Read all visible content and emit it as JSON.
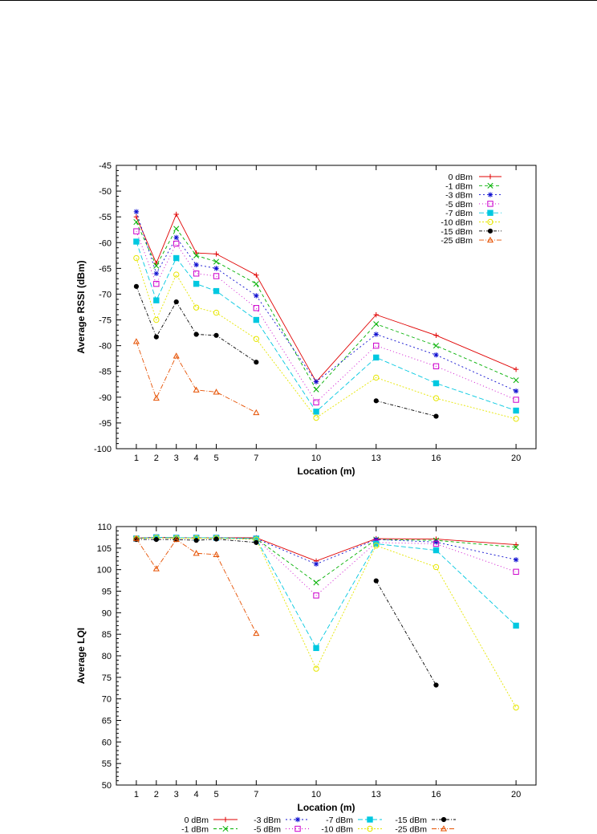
{
  "chart_data": [
    {
      "type": "line",
      "xlabel": "Location (m)",
      "ylabel": "Average RSSI (dBm)",
      "ylim": [
        -100,
        -45
      ],
      "yticks": [
        -45,
        -50,
        -55,
        -60,
        -65,
        -70,
        -75,
        -80,
        -85,
        -90,
        -95,
        -100
      ],
      "xticks": [
        1,
        2,
        3,
        4,
        5,
        7,
        10,
        13,
        16,
        20
      ],
      "legend_position": "top-right",
      "series": [
        {
          "name": "0 dBm",
          "color": "#e00000",
          "marker": "plus",
          "dash": "",
          "x": [
            1,
            2,
            3,
            4,
            5,
            7,
            10,
            13,
            16,
            20
          ],
          "y": [
            -55,
            -64,
            -54.5,
            -62,
            -62.2,
            -66.3,
            -87,
            -74,
            -78,
            -84.6
          ]
        },
        {
          "name": "-1 dBm",
          "color": "#00b000",
          "marker": "cross",
          "dash": "4,3",
          "x": [
            1,
            2,
            3,
            4,
            5,
            7,
            10,
            13,
            16,
            20
          ],
          "y": [
            -56,
            -64.5,
            -57.3,
            -62.5,
            -63.7,
            -68,
            -88.5,
            -75.8,
            -80,
            -86.7
          ]
        },
        {
          "name": "-3 dBm",
          "color": "#1010d0",
          "marker": "star",
          "dash": "2,3",
          "x": [
            1,
            2,
            3,
            4,
            5,
            7,
            10,
            13,
            16,
            20
          ],
          "y": [
            -54,
            -66,
            -59,
            -64.3,
            -65,
            -70.3,
            -87,
            -77.8,
            -81.8,
            -88.8
          ]
        },
        {
          "name": "-5 dBm",
          "color": "#cc00cc",
          "marker": "square",
          "dash": "1,3",
          "x": [
            1,
            2,
            3,
            4,
            5,
            7,
            10,
            13,
            16,
            20
          ],
          "y": [
            -57.8,
            -68,
            -60.2,
            -66,
            -66.5,
            -72.7,
            -91,
            -80,
            -84,
            -90.5
          ]
        },
        {
          "name": "-7 dBm",
          "color": "#00c8e0",
          "marker": "fsquare",
          "dash": "6,3",
          "x": [
            1,
            2,
            3,
            4,
            5,
            7,
            10,
            13,
            16,
            20
          ],
          "y": [
            -59.8,
            -71.2,
            -63,
            -68,
            -69.4,
            -75,
            -92.8,
            -82.3,
            -87.3,
            -92.6
          ]
        },
        {
          "name": "-10 dBm",
          "color": "#e6e600",
          "marker": "circle",
          "dash": "2,2",
          "x": [
            1,
            2,
            3,
            4,
            5,
            7,
            10,
            13,
            16,
            20
          ],
          "y": [
            -63,
            -75,
            -66.2,
            -72.6,
            -73.6,
            -78.7,
            -94,
            -86.2,
            -90.2,
            -94.2
          ]
        },
        {
          "name": "-15 dBm",
          "color": "#000000",
          "marker": "fcircle",
          "dash": "4,2,1,2",
          "x": [
            1,
            2,
            3,
            4,
            5,
            7,
            13,
            16
          ],
          "y": [
            -68.5,
            -78.3,
            -71.5,
            -77.8,
            -78,
            -83.2,
            -90.7,
            -93.7
          ],
          "breaks": [
            6
          ]
        },
        {
          "name": "-25 dBm",
          "color": "#e65000",
          "marker": "triangle",
          "dash": "6,2,1,2",
          "x": [
            1,
            2,
            3,
            4,
            5,
            7
          ],
          "y": [
            -79.2,
            -90.2,
            -82,
            -88.6,
            -89,
            -93
          ]
        }
      ]
    },
    {
      "type": "line",
      "xlabel": "Location (m)",
      "ylabel": "Average LQI",
      "ylim": [
        50,
        110
      ],
      "yticks": [
        110,
        105,
        100,
        95,
        90,
        85,
        80,
        75,
        70,
        65,
        60,
        55,
        50
      ],
      "xticks": [
        1,
        2,
        3,
        4,
        5,
        7,
        10,
        13,
        16,
        20
      ],
      "legend_position": "bottom",
      "series": [
        {
          "name": "0 dBm",
          "color": "#e00000",
          "marker": "plus",
          "dash": "",
          "x": [
            1,
            2,
            3,
            4,
            5,
            7,
            10,
            13,
            16,
            20
          ],
          "y": [
            107.3,
            107.5,
            107.4,
            107.4,
            107.4,
            107.4,
            102,
            107.2,
            107.1,
            105.8
          ]
        },
        {
          "name": "-1 dBm",
          "color": "#00b000",
          "marker": "cross",
          "dash": "4,3",
          "x": [
            1,
            2,
            3,
            4,
            5,
            7,
            10,
            13,
            16,
            20
          ],
          "y": [
            107.3,
            107.5,
            107.4,
            107.4,
            107.4,
            107.2,
            97,
            107,
            106.8,
            105.2
          ]
        },
        {
          "name": "-3 dBm",
          "color": "#1010d0",
          "marker": "star",
          "dash": "2,3",
          "x": [
            1,
            2,
            3,
            4,
            5,
            7,
            10,
            13,
            16,
            20
          ],
          "y": [
            107.3,
            107.5,
            107.4,
            107.4,
            107.4,
            107.2,
            101.3,
            107,
            106.4,
            102.3
          ]
        },
        {
          "name": "-5 dBm",
          "color": "#cc00cc",
          "marker": "square",
          "dash": "1,3",
          "x": [
            1,
            2,
            3,
            4,
            5,
            7,
            10,
            13,
            16,
            20
          ],
          "y": [
            107.2,
            107.5,
            107.4,
            107.4,
            107.4,
            107.2,
            94,
            106.3,
            106,
            99.5
          ]
        },
        {
          "name": "-7 dBm",
          "color": "#00c8e0",
          "marker": "fsquare",
          "dash": "6,3",
          "x": [
            1,
            2,
            3,
            4,
            5,
            7,
            10,
            13,
            16,
            20
          ],
          "y": [
            107.2,
            107.5,
            107.4,
            107.4,
            107.4,
            107.2,
            81.8,
            106,
            104.5,
            87
          ]
        },
        {
          "name": "-10 dBm",
          "color": "#e6e600",
          "marker": "circle",
          "dash": "2,2",
          "x": [
            1,
            2,
            3,
            4,
            5,
            7,
            10,
            13,
            16,
            20
          ],
          "y": [
            107.2,
            107.4,
            107.3,
            107.3,
            107.3,
            107,
            77,
            105.6,
            100.6,
            68
          ]
        },
        {
          "name": "-15 dBm",
          "color": "#000000",
          "marker": "fcircle",
          "dash": "4,2,1,2",
          "x": [
            1,
            2,
            3,
            4,
            5,
            7,
            13,
            16
          ],
          "y": [
            107,
            107,
            107,
            106.8,
            107.1,
            106.3,
            97.4,
            73.2
          ],
          "breaks": [
            6
          ]
        },
        {
          "name": "-25 dBm",
          "color": "#e65000",
          "marker": "triangle",
          "dash": "6,2,1,2",
          "x": [
            1,
            2,
            3,
            4,
            5,
            7
          ],
          "y": [
            107.2,
            100.2,
            107,
            103.8,
            103.5,
            85.2
          ]
        }
      ]
    }
  ]
}
